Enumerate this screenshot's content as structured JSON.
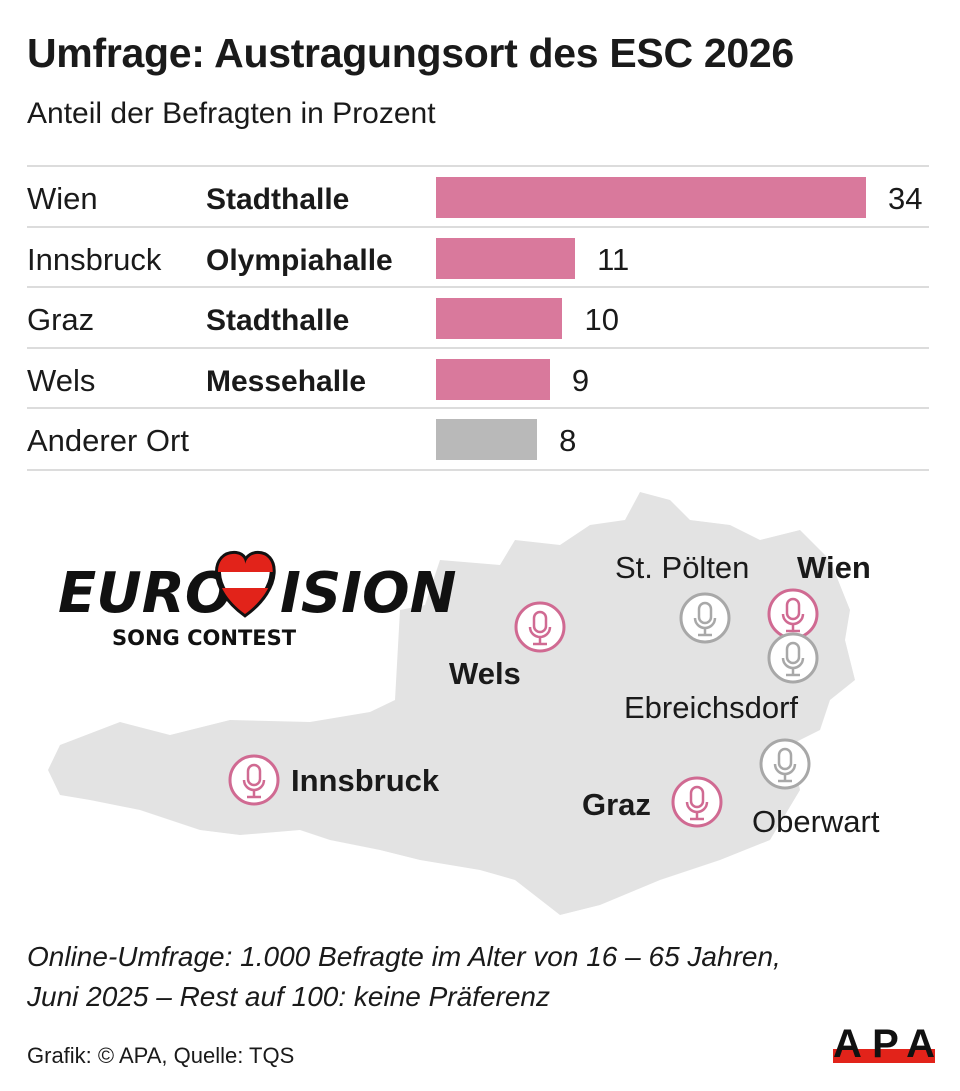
{
  "title": "Umfrage: Austragungsort des ESC 2026",
  "subtitle": "Anteil der Befragten in Prozent",
  "colors": {
    "highlight": "#d9799c",
    "other": "#b9b9b9",
    "map_fill": "#e3e3e3",
    "marker_pink": "#d06a92",
    "marker_gray": "#a8a8a8",
    "apa_red": "#e2231a"
  },
  "chart_data": {
    "type": "bar",
    "orientation": "horizontal",
    "categories": [
      "Wien Stadthalle",
      "Innsbruck Olympiahalle",
      "Graz Stadthalle",
      "Wels Messehalle",
      "Anderer Ort"
    ],
    "rows": [
      {
        "city": "Wien",
        "venue": "Stadthalle",
        "value": 34,
        "color": "#d9799c"
      },
      {
        "city": "Innsbruck",
        "venue": "Olympiahalle",
        "value": 11,
        "color": "#d9799c"
      },
      {
        "city": "Graz",
        "venue": "Stadthalle",
        "value": 10,
        "color": "#d9799c"
      },
      {
        "city": "Wels",
        "venue": "Messehalle",
        "value": 9,
        "color": "#d9799c"
      },
      {
        "city": "Anderer Ort",
        "venue": "",
        "value": 8,
        "color": "#b9b9b9"
      }
    ],
    "unit": "Prozent"
  },
  "map": {
    "locations": [
      {
        "name": "Wels",
        "bold": true,
        "highlight": true
      },
      {
        "name": "St. Pölten",
        "bold": false,
        "highlight": false
      },
      {
        "name": "Wien",
        "bold": true,
        "highlight": true
      },
      {
        "name": "Ebreichsdorf",
        "bold": false,
        "highlight": false
      },
      {
        "name": "Oberwart",
        "bold": false,
        "highlight": false
      },
      {
        "name": "Graz",
        "bold": true,
        "highlight": true
      },
      {
        "name": "Innsbruck",
        "bold": true,
        "highlight": true
      }
    ],
    "marker_icon": "microphone-icon"
  },
  "logo": {
    "word": "EUROVISION",
    "tagline": "SONG CONTEST"
  },
  "footnote_line1": "Online-Umfrage: 1.000 Befragte im Alter von 16 – 65 Jahren,",
  "footnote_line2": "Juni 2025 – Rest auf 100: keine Präferenz",
  "credit": "Grafik: © APA, Quelle: TQS",
  "apa_logo": "APA"
}
